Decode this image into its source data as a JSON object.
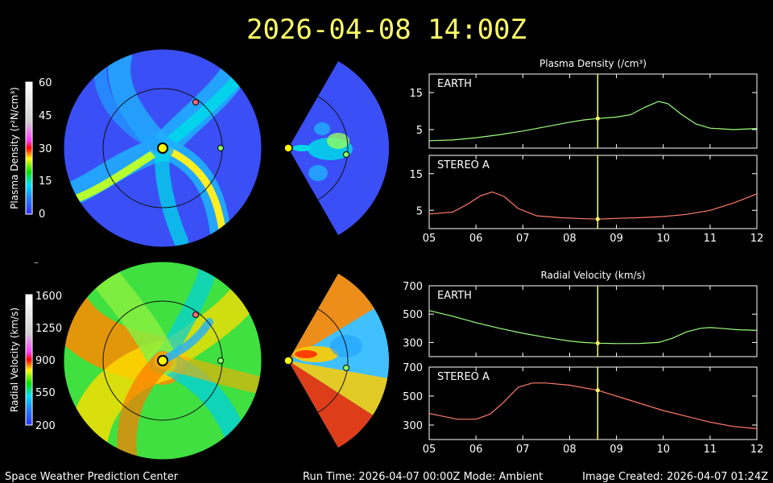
{
  "header": {
    "timestamp": "2026-04-08 14:00Z",
    "color": "#ffff66"
  },
  "footer": {
    "left": "Space Weather Prediction Center",
    "center": "Run Time: 2026-04-07 00:00Z  Mode: Ambient",
    "right": "Image Created: 2026-04-07 01:24Z"
  },
  "colorbars": {
    "density": {
      "label": "Plasma Density (r²N/cm³)",
      "ticks": [
        "60",
        "45",
        "30",
        "15",
        "0"
      ]
    },
    "velocity": {
      "label": "Radial Velocity (km/s)",
      "ticks": [
        "1600",
        "1250",
        "900",
        "550",
        "200"
      ]
    },
    "small_mark": "–"
  },
  "chart_data": [
    {
      "type": "line",
      "title": "Plasma Density (/cm³)",
      "panel": "EARTH",
      "x": [
        5.0,
        5.5,
        6.0,
        6.5,
        7.0,
        7.5,
        8.0,
        8.3,
        8.6,
        9.0,
        9.3,
        9.6,
        9.9,
        10.1,
        10.4,
        10.7,
        11.0,
        11.5,
        12.0
      ],
      "values": [
        2,
        2.2,
        2.8,
        3.6,
        4.6,
        5.8,
        7.0,
        7.6,
        8.0,
        8.4,
        9.0,
        11.0,
        12.6,
        12.0,
        9.0,
        6.5,
        5.4,
        5.0,
        5.3
      ],
      "ylim": [
        0,
        20
      ],
      "yticks": [
        "15",
        "5"
      ],
      "color": "#9cff7a",
      "current_x": 8.6
    },
    {
      "type": "line",
      "panel": "STEREO A",
      "x": [
        5.0,
        5.5,
        5.8,
        6.1,
        6.35,
        6.6,
        6.9,
        7.3,
        7.8,
        8.3,
        8.6,
        9.0,
        9.5,
        10.0,
        10.5,
        11.0,
        11.5,
        12.0
      ],
      "values": [
        4.0,
        4.5,
        6.5,
        9.0,
        10.0,
        8.8,
        5.5,
        3.5,
        3.0,
        2.7,
        2.6,
        2.8,
        3.0,
        3.3,
        3.9,
        5.0,
        7.0,
        9.5
      ],
      "ylim": [
        0,
        20
      ],
      "yticks": [
        "15",
        "5"
      ],
      "color": "#ff7a6a",
      "current_x": 8.6
    },
    {
      "type": "line",
      "title": "Radial Velocity (km/s)",
      "panel": "EARTH",
      "x": [
        5.0,
        5.5,
        6.0,
        6.5,
        7.0,
        7.5,
        8.0,
        8.3,
        8.6,
        9.0,
        9.5,
        9.9,
        10.2,
        10.5,
        10.8,
        11.0,
        11.3,
        11.6,
        12.0
      ],
      "values": [
        525,
        485,
        440,
        400,
        365,
        335,
        310,
        300,
        295,
        292,
        293,
        300,
        330,
        375,
        400,
        405,
        398,
        390,
        385
      ],
      "ylim": [
        200,
        700
      ],
      "yticks": [
        "700",
        "500",
        "300"
      ],
      "color": "#9cff7a",
      "current_x": 8.6
    },
    {
      "type": "line",
      "panel": "STEREO A",
      "x": [
        5.0,
        5.3,
        5.6,
        6.0,
        6.3,
        6.6,
        6.9,
        7.2,
        7.5,
        8.0,
        8.6,
        9.0,
        9.5,
        10.0,
        10.5,
        11.0,
        11.5,
        12.0
      ],
      "values": [
        380,
        360,
        340,
        340,
        375,
        460,
        560,
        590,
        590,
        575,
        540,
        500,
        450,
        400,
        360,
        320,
        290,
        275
      ],
      "ylim": [
        200,
        700
      ],
      "yticks": [
        "700",
        "500",
        "300"
      ],
      "color": "#ff7a6a",
      "current_x": 8.6
    }
  ],
  "shared_x": {
    "xlim": [
      5,
      12
    ],
    "xticks": [
      "05",
      "06",
      "07",
      "08",
      "09",
      "10",
      "11",
      "12"
    ]
  }
}
